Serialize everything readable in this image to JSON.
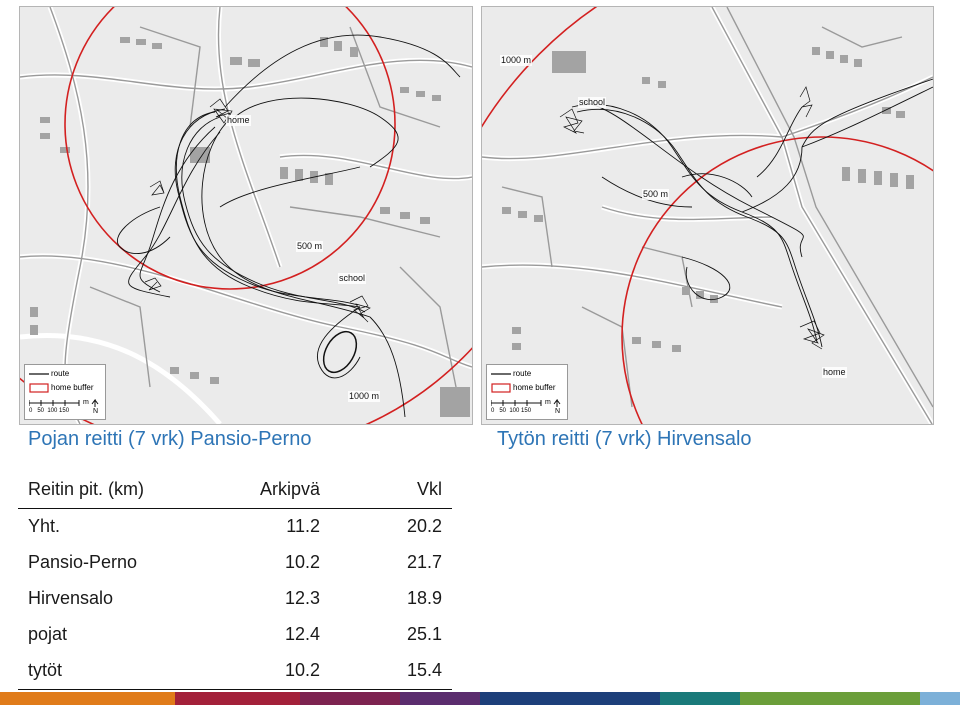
{
  "maps": {
    "left": {
      "labels": {
        "home": "home",
        "school": "school",
        "ring_500": "500 m",
        "ring_1000": "1000 m"
      },
      "legend": {
        "route": "route",
        "buffer": "home buffer",
        "scale": "0   50  100 150",
        "unit": "m",
        "north": "N"
      }
    },
    "right": {
      "labels": {
        "home": "home",
        "school": "school",
        "ring_500": "500 m",
        "ring_1000": "1000 m"
      },
      "legend": {
        "route": "route",
        "buffer": "home buffer",
        "scale": "0   50  100 150",
        "unit": "m",
        "north": "N"
      }
    }
  },
  "captions": {
    "left": "Pojan reitti (7 vrk) Pansio-Perno",
    "right": "Tytön reitti (7 vrk) Hirvensalo"
  },
  "table": {
    "headers": [
      "Reitin pit. (km)",
      "Arkipvä",
      "Vkl"
    ],
    "rows": [
      [
        "Yht.",
        "11.2",
        "20.2"
      ],
      [
        "Pansio-Perno",
        "10.2",
        "21.7"
      ],
      [
        "Hirvensalo",
        "12.3",
        "18.9"
      ],
      [
        "pojat",
        "12.4",
        "25.1"
      ],
      [
        "tytöt",
        "10.2",
        "15.4"
      ]
    ]
  },
  "colors": {
    "caption": "#2e75b6",
    "buffer_ring": "#d32020",
    "route": "#111111",
    "footer_bar": [
      "#e07b1a",
      "#a3213a",
      "#7d2350",
      "#5b2d6e",
      "#1d3f7a",
      "#1a7a7a",
      "#6b9e3a",
      "#7cb0d8"
    ]
  }
}
